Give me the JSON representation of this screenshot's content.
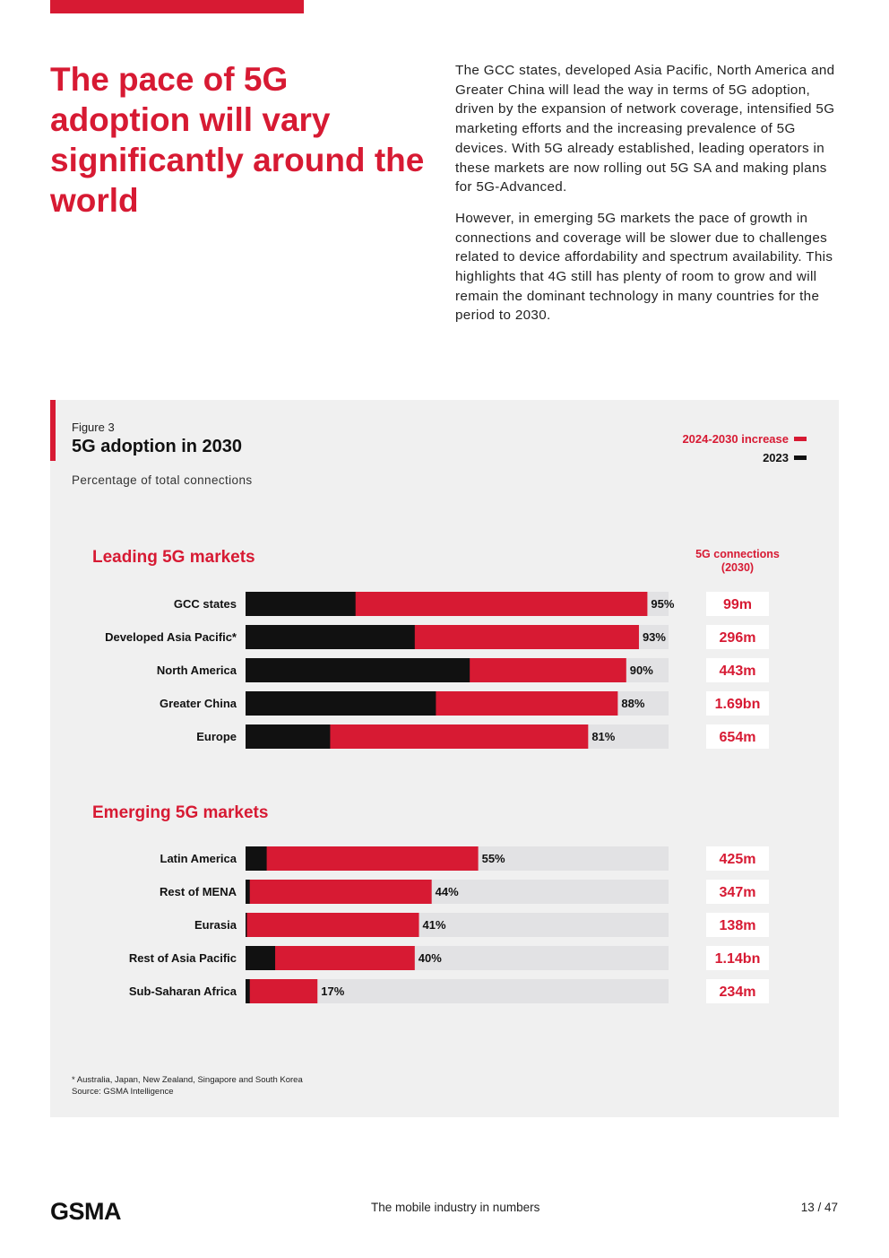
{
  "headline": "The pace of 5G adoption will vary significantly around the world",
  "intro": {
    "p1": "The GCC states, developed Asia Pacific, North America and Greater China will lead the way in terms of 5G adoption, driven by the expansion of network coverage, intensified 5G marketing efforts and the increasing prevalence of 5G devices. With 5G already established, leading operators in these markets are now rolling out 5G SA and making plans for 5G-Advanced.",
    "p2": "However, in emerging 5G markets the pace of growth in connections and coverage will be slower due to challenges related to device affordability and spectrum availability. This highlights that 4G still has plenty of room to grow and will remain the dominant technology in many countries for the period to 2030."
  },
  "figure": {
    "label": "Figure 3",
    "title": "5G adoption in 2030",
    "subtitle": "Percentage of total connections",
    "legend": {
      "increase": "2024-2030 increase",
      "base": "2023"
    },
    "connections_header": "5G connections (2030)",
    "footnote": "* Australia, Japan, New Zealand, Singapore and South Korea",
    "source": "Source: GSMA Intelligence"
  },
  "chart_data": {
    "type": "bar",
    "orientation": "horizontal",
    "stacked": true,
    "title": "5G adoption in 2030",
    "ylabel": "Percentage of total connections",
    "xlim": [
      0,
      100
    ],
    "series_names": [
      "2023",
      "2024-2030 increase"
    ],
    "colors": {
      "base": "#111111",
      "increase": "#d71a33",
      "track": "#e2e2e4"
    },
    "groups": [
      {
        "name": "Leading 5G markets",
        "rows": [
          {
            "label": "GCC states",
            "base_2023": 26,
            "total_2030": 95,
            "total_label": "95%",
            "connections": "99m"
          },
          {
            "label": "Developed Asia Pacific*",
            "base_2023": 40,
            "total_2030": 93,
            "total_label": "93%",
            "connections": "296m"
          },
          {
            "label": "North America",
            "base_2023": 53,
            "total_2030": 90,
            "total_label": "90%",
            "connections": "443m"
          },
          {
            "label": "Greater China",
            "base_2023": 45,
            "total_2030": 88,
            "total_label": "88%",
            "connections": "1.69bn"
          },
          {
            "label": "Europe",
            "base_2023": 20,
            "total_2030": 81,
            "total_label": "81%",
            "connections": "654m"
          }
        ]
      },
      {
        "name": "Emerging 5G markets",
        "rows": [
          {
            "label": "Latin America",
            "base_2023": 5,
            "total_2030": 55,
            "total_label": "55%",
            "connections": "425m"
          },
          {
            "label": "Rest of MENA",
            "base_2023": 1,
            "total_2030": 44,
            "total_label": "44%",
            "connections": "347m"
          },
          {
            "label": "Eurasia",
            "base_2023": 0.3,
            "total_2030": 41,
            "total_label": "41%",
            "connections": "138m"
          },
          {
            "label": "Rest of Asia Pacific",
            "base_2023": 7,
            "total_2030": 40,
            "total_label": "40%",
            "connections": "1.14bn"
          },
          {
            "label": "Sub-Saharan Africa",
            "base_2023": 1,
            "total_2030": 17,
            "total_label": "17%",
            "connections": "234m"
          }
        ]
      }
    ]
  },
  "footer": {
    "logo": "GSMA",
    "title": "The mobile industry in numbers",
    "page": "13 / 47"
  }
}
